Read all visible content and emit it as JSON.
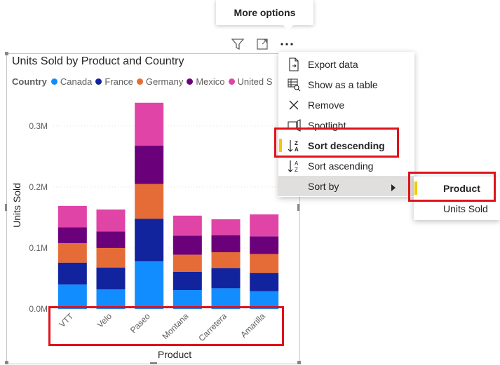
{
  "tooltip": {
    "text": "More options"
  },
  "header_icons": [
    "filter-icon",
    "focus-mode-icon",
    "more-options-icon"
  ],
  "visual": {
    "title": "Units Sold by Product and Country",
    "legend_title": "Country",
    "legend": [
      {
        "label": "Canada",
        "color": "#118dff"
      },
      {
        "label": "France",
        "color": "#12239e"
      },
      {
        "label": "Germany",
        "color": "#e66c37"
      },
      {
        "label": "Mexico",
        "color": "#6b007b"
      },
      {
        "label": "United S",
        "color": "#e044a7"
      }
    ]
  },
  "menu": {
    "items": [
      {
        "label": "Export data",
        "icon": "export-icon"
      },
      {
        "label": "Show as a table",
        "icon": "table-icon"
      },
      {
        "label": "Remove",
        "icon": "close-icon"
      },
      {
        "label": "Spotlight",
        "icon": "spotlight-icon"
      },
      {
        "label": "Sort descending",
        "icon": "sort-descending-icon"
      },
      {
        "label": "Sort ascending",
        "icon": "sort-ascending-icon"
      },
      {
        "label": "Sort by",
        "icon": "chevron-right-icon"
      }
    ]
  },
  "submenu": {
    "items": [
      {
        "label": "Product",
        "selected": true
      },
      {
        "label": "Units Sold",
        "selected": false
      }
    ]
  },
  "chart_data": {
    "type": "bar",
    "stacked": true,
    "categories": [
      "VTT",
      "Velo",
      "Paseo",
      "Montana",
      "Carretera",
      "Amarilla"
    ],
    "series": [
      {
        "name": "Canada",
        "color": "#118dff",
        "values": [
          40000,
          32000,
          78000,
          31000,
          34000,
          29000
        ]
      },
      {
        "name": "France",
        "color": "#12239e",
        "values": [
          36000,
          36000,
          70000,
          30000,
          33000,
          30000
        ]
      },
      {
        "name": "Germany",
        "color": "#e66c37",
        "values": [
          32000,
          32000,
          57000,
          28000,
          26000,
          31000
        ]
      },
      {
        "name": "Mexico",
        "color": "#6b007b",
        "values": [
          26000,
          27000,
          63000,
          31000,
          28000,
          29000
        ]
      },
      {
        "name": "United States",
        "color": "#e044a7",
        "values": [
          35000,
          36000,
          70000,
          33000,
          26000,
          36000
        ]
      }
    ],
    "xlabel": "Product",
    "ylabel": "Units Sold",
    "yticks": [
      "0.0M",
      "0.1M",
      "0.2M",
      "0.3M"
    ],
    "ytick_values": [
      0,
      100000,
      200000,
      300000
    ],
    "ylim": [
      0,
      340000
    ],
    "grid": true
  }
}
